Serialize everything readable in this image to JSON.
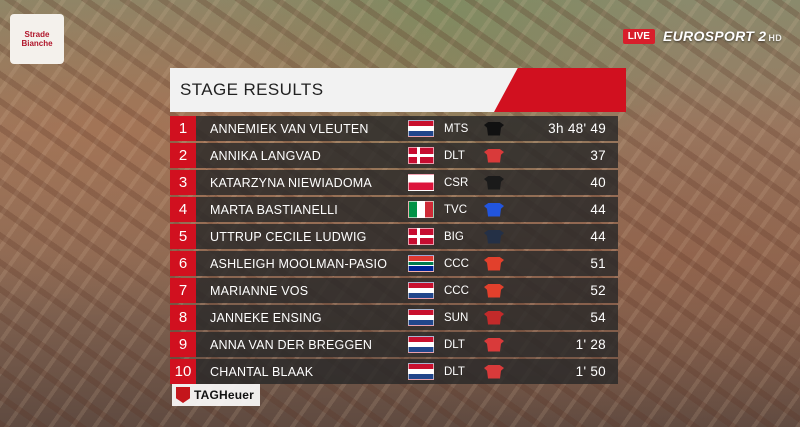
{
  "broadcast": {
    "logo_text": "Strade Bianche",
    "live_label": "LIVE",
    "channel_name": "EUROSPORT 2",
    "channel_hd": "HD"
  },
  "panel": {
    "title": "STAGE RESULTS"
  },
  "results": [
    {
      "pos": "1",
      "name": "ANNEMIEK VAN VLEUTEN",
      "flag": "NED",
      "team": "MTS",
      "time": "3h 48' 49"
    },
    {
      "pos": "2",
      "name": "ANNIKA LANGVAD",
      "flag": "DEN",
      "team": "DLT",
      "time": "37"
    },
    {
      "pos": "3",
      "name": "KATARZYNA NIEWIADOMA",
      "flag": "POL",
      "team": "CSR",
      "time": "40"
    },
    {
      "pos": "4",
      "name": "MARTA BASTIANELLI",
      "flag": "ITA",
      "team": "TVC",
      "time": "44"
    },
    {
      "pos": "5",
      "name": "UTTRUP CECILE LUDWIG",
      "flag": "DEN",
      "team": "BIG",
      "time": "44"
    },
    {
      "pos": "6",
      "name": "ASHLEIGH MOOLMAN-PASIO",
      "flag": "RSA",
      "team": "CCC",
      "time": "51"
    },
    {
      "pos": "7",
      "name": "MARIANNE VOS",
      "flag": "NED",
      "team": "CCC",
      "time": "52"
    },
    {
      "pos": "8",
      "name": "JANNEKE ENSING",
      "flag": "NED",
      "team": "SUN",
      "time": "54"
    },
    {
      "pos": "9",
      "name": "ANNA VAN DER BREGGEN",
      "flag": "NED",
      "team": "DLT",
      "time": "1' 28"
    },
    {
      "pos": "10",
      "name": "CHANTAL BLAAK",
      "flag": "NED",
      "team": "DLT",
      "time": "1' 50"
    }
  ],
  "sponsor": {
    "name": "TAGHeuer"
  },
  "colors": {
    "accent": "#d1101f",
    "row_bg": "#2b2b2b",
    "header_bg": "#f2f2f2"
  }
}
